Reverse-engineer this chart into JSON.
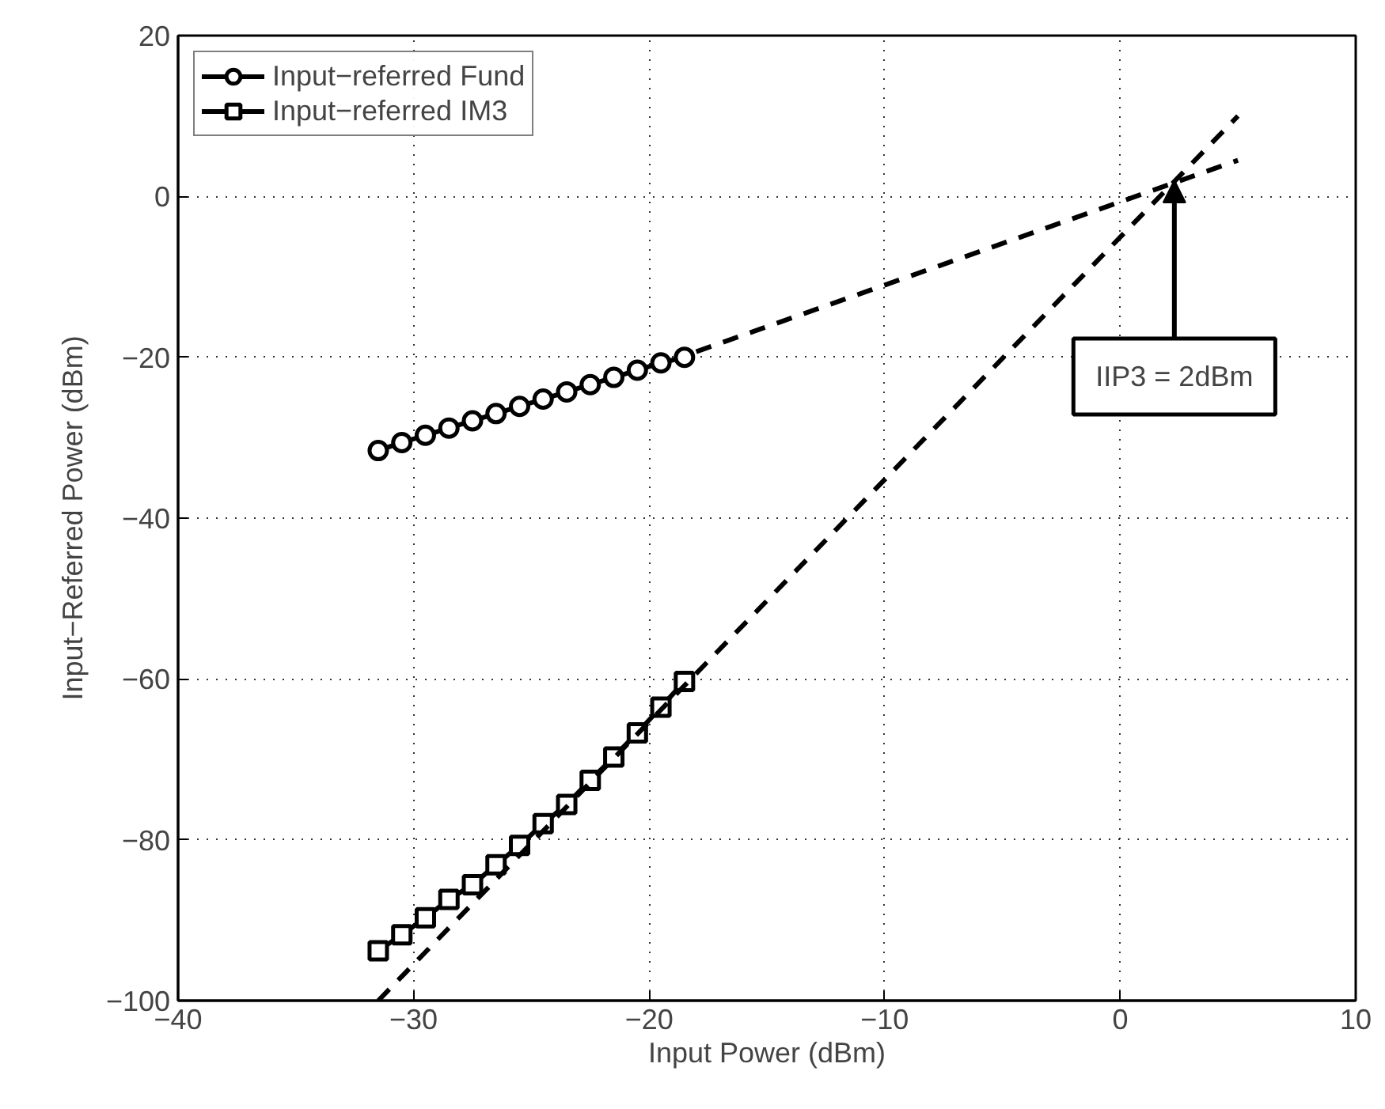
{
  "chart_data": {
    "type": "line",
    "xlabel": "Input Power (dBm)",
    "ylabel": "Input−Referred Power (dBm)",
    "xlim": [
      -40,
      10
    ],
    "xticks": [
      {
        "value": -40,
        "label": "−40"
      },
      {
        "value": -30,
        "label": "−30"
      },
      {
        "value": -20,
        "label": "−20"
      },
      {
        "value": -10,
        "label": "−10"
      },
      0,
      10
    ],
    "ylim": [
      -100,
      20
    ],
    "yticks": [
      {
        "value": -100,
        "label": "−100"
      },
      {
        "value": -80,
        "label": "−80"
      },
      {
        "value": -60,
        "label": "−60"
      },
      {
        "value": -40,
        "label": "−40"
      },
      {
        "value": -20,
        "label": "−20"
      },
      0,
      20
    ],
    "grid": true,
    "legend": "top left",
    "series": [
      {
        "name": "Input−referred Fund",
        "color": "#000000",
        "marker": "circle",
        "line_style": "solid",
        "x": [
          -31.5,
          -30.5,
          -29.5,
          -28.5,
          -27.5,
          -26.5,
          -25.5,
          -24.5,
          -23.5,
          -22.5,
          -21.5,
          -20.5,
          -19.5,
          -18.5
        ],
        "values": [
          -31.6,
          -30.6,
          -29.7,
          -28.8,
          -27.9,
          -27.0,
          -26.1,
          -25.2,
          -24.3,
          -23.4,
          -22.5,
          -21.6,
          -20.7,
          -20.0
        ]
      },
      {
        "name": "Input−referred IM3",
        "color": "#000000",
        "marker": "square",
        "line_style": "solid",
        "x": [
          -31.5,
          -30.5,
          -29.5,
          -28.5,
          -27.5,
          -26.5,
          -25.5,
          -24.5,
          -23.5,
          -22.5,
          -21.5,
          -20.5,
          -19.5,
          -18.5
        ],
        "values": [
          -93.8,
          -91.8,
          -89.7,
          -87.4,
          -85.6,
          -83.1,
          -80.7,
          -78.0,
          -75.6,
          -72.6,
          -69.7,
          -66.7,
          -63.5,
          -60.3
        ]
      },
      {
        "color": "#000000",
        "marker": "none",
        "line_style": "dashed",
        "x": [
          -18,
          5
        ],
        "values": [
          -19.3,
          4.5
        ]
      },
      {
        "color": "#000000",
        "marker": "none",
        "line_style": "dashed",
        "x": [
          -31.5,
          5
        ],
        "values": [
          -100,
          10
        ]
      }
    ],
    "annotations": [
      {
        "text": "IIP3 = 2dBm",
        "x": 2,
        "y": 2
      }
    ]
  }
}
